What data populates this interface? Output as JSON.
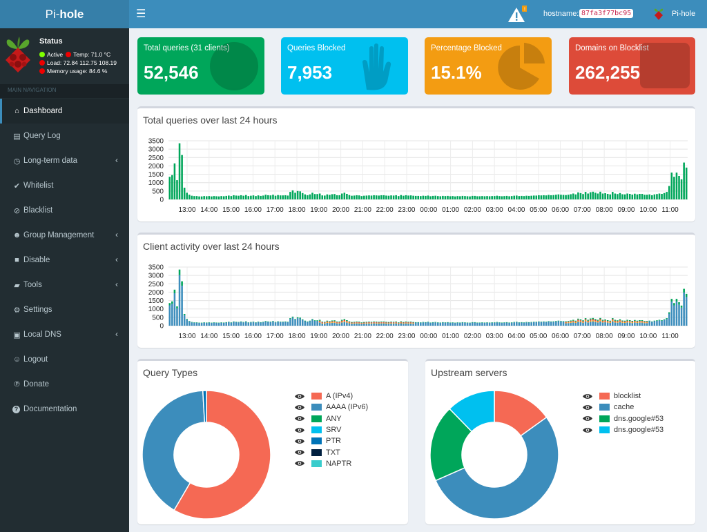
{
  "brand": {
    "left": "Pi-",
    "right": "hole"
  },
  "status": {
    "title": "Status",
    "active": "Active",
    "temp": "Temp: 71.0 °C",
    "load": "Load:  72.84  112.75  108.19",
    "memory": "Memory usage:  84.6 %"
  },
  "nav_header": "MAIN NAVIGATION",
  "menu": [
    {
      "label": "Dashboard",
      "icon": "home-icon",
      "active": true,
      "expand": false
    },
    {
      "label": "Query Log",
      "icon": "file-icon",
      "active": false,
      "expand": false
    },
    {
      "label": "Long-term data",
      "icon": "clock-icon",
      "active": false,
      "expand": true
    },
    {
      "label": "Whitelist",
      "icon": "check-circle-icon",
      "active": false,
      "expand": false
    },
    {
      "label": "Blacklist",
      "icon": "ban-icon",
      "active": false,
      "expand": false
    },
    {
      "label": "Group Management",
      "icon": "users-icon",
      "active": false,
      "expand": true
    },
    {
      "label": "Disable",
      "icon": "stop-icon",
      "active": false,
      "expand": true
    },
    {
      "label": "Tools",
      "icon": "folder-icon",
      "active": false,
      "expand": true
    },
    {
      "label": "Settings",
      "icon": "gears-icon",
      "active": false,
      "expand": false
    },
    {
      "label": "Local DNS",
      "icon": "address-book-icon",
      "active": false,
      "expand": true
    },
    {
      "label": "Logout",
      "icon": "user-times-icon",
      "active": false,
      "expand": false
    },
    {
      "label": "Donate",
      "icon": "paypal-icon",
      "active": false,
      "expand": false
    },
    {
      "label": "Documentation",
      "icon": "question-circle-icon",
      "active": false,
      "expand": false
    }
  ],
  "topbar": {
    "warning_count": "!",
    "hostname_label": "hostname:",
    "hostname": "87fa3f77bc95",
    "user": "Pi-hole"
  },
  "tiles": [
    {
      "label": "Total queries (31 clients)",
      "value": "52,546",
      "color": "#00a65a",
      "icon": "globe-icon"
    },
    {
      "label": "Queries Blocked",
      "value": "7,953",
      "color": "#00c0ef",
      "icon": "hand-icon"
    },
    {
      "label": "Percentage Blocked",
      "value": "15.1%",
      "color": "#f39c12",
      "icon": "pie-chart-icon"
    },
    {
      "label": "Domains on Blocklist",
      "value": "262,255",
      "color": "#dd4b39",
      "icon": "list-icon"
    }
  ],
  "panels": {
    "total_queries": "Total queries over last 24 hours",
    "client_activity": "Client activity over last 24 hours",
    "query_types": "Query Types",
    "upstream": "Upstream servers"
  },
  "chart_data": [
    {
      "type": "bar",
      "title": "Total queries over last 24 hours",
      "ylim": [
        0,
        3500
      ],
      "yticks": [
        0,
        500,
        1000,
        1500,
        2000,
        2500,
        3000,
        3500
      ],
      "grid": true,
      "xticks": [
        "13:00",
        "14:00",
        "15:00",
        "16:00",
        "17:00",
        "18:00",
        "19:00",
        "20:00",
        "21:00",
        "22:00",
        "23:00",
        "00:00",
        "01:00",
        "02:00",
        "03:00",
        "04:00",
        "05:00",
        "06:00",
        "07:00",
        "08:00",
        "09:00",
        "10:00",
        "11:00"
      ],
      "series": [
        {
          "values": [
            1350,
            1450,
            2150,
            1150,
            3350,
            2650,
            700,
            400,
            280,
            220,
            200,
            200,
            180,
            180,
            200,
            190,
            200,
            180,
            200,
            190,
            180,
            200,
            190,
            210,
            230,
            200,
            250,
            230,
            220,
            250,
            220,
            260,
            200,
            220,
            240,
            200,
            240,
            210,
            230,
            280,
            250,
            240,
            280,
            220,
            260,
            240,
            240,
            250,
            230,
            450,
            540,
            400,
            500,
            480,
            380,
            300,
            250,
            300,
            400,
            320,
            320,
            350,
            240,
            230,
            300,
            270,
            310,
            320,
            250,
            250,
            350,
            400,
            330,
            260,
            220,
            230,
            250,
            240,
            200,
            220,
            230,
            240,
            230,
            250,
            240,
            230,
            250,
            250,
            230,
            220,
            240,
            230,
            250,
            200,
            260,
            220,
            250,
            230,
            240,
            220,
            210,
            210,
            200,
            220,
            210,
            230,
            190,
            210,
            220,
            200,
            190,
            210,
            200,
            210,
            190,
            200,
            180,
            200,
            190,
            210,
            200,
            190,
            180,
            210,
            210,
            190,
            190,
            200,
            190,
            200,
            190,
            200,
            200,
            220,
            200,
            190,
            200,
            210,
            190,
            200,
            220,
            230,
            200,
            210,
            200,
            220,
            210,
            220,
            230,
            230,
            250,
            240,
            250,
            240,
            270,
            250,
            260,
            280,
            300,
            280,
            270,
            260,
            280,
            310,
            350,
            300,
            420,
            380,
            320,
            450,
            350,
            430,
            460,
            400,
            350,
            460,
            350,
            370,
            330,
            300,
            450,
            350,
            320,
            380,
            310,
            300,
            350,
            330,
            290,
            340,
            300,
            330,
            330,
            280,
            280,
            300,
            250,
            300,
            320,
            350,
            330,
            380,
            450,
            800,
            1600,
            1350,
            1600,
            1400,
            1200,
            2200,
            1900
          ]
        }
      ]
    },
    {
      "type": "bar",
      "title": "Client activity over last 24 hours",
      "ylim": [
        0,
        3500
      ],
      "yticks": [
        0,
        500,
        1000,
        1500,
        2000,
        2500,
        3000,
        3500
      ],
      "grid": true,
      "xticks": [
        "13:00",
        "14:00",
        "15:00",
        "16:00",
        "17:00",
        "18:00",
        "19:00",
        "20:00",
        "21:00",
        "22:00",
        "23:00",
        "00:00",
        "01:00",
        "02:00",
        "03:00",
        "04:00",
        "05:00",
        "06:00",
        "07:00",
        "08:00",
        "09:00",
        "10:00",
        "11:00"
      ]
    },
    {
      "type": "pie",
      "title": "Query Types",
      "categories": [
        "A (IPv4)",
        "AAAA (IPv6)",
        "ANY",
        "SRV",
        "PTR",
        "TXT",
        "NAPTR"
      ],
      "values": [
        58.4,
        40.7,
        0,
        0,
        0.9,
        0,
        0
      ],
      "colors": [
        "#f56954",
        "#3c8dbc",
        "#00a65a",
        "#00c0ef",
        "#0073b7",
        "#001f3f",
        "#39cccc"
      ]
    },
    {
      "type": "pie",
      "title": "Upstream servers",
      "categories": [
        "blocklist",
        "cache",
        "dns.google#53",
        "dns.google#53"
      ],
      "values": [
        15.1,
        53.3,
        19.3,
        12.3
      ],
      "colors": [
        "#f56954",
        "#3c8dbc",
        "#00a65a",
        "#00c0ef"
      ]
    }
  ]
}
